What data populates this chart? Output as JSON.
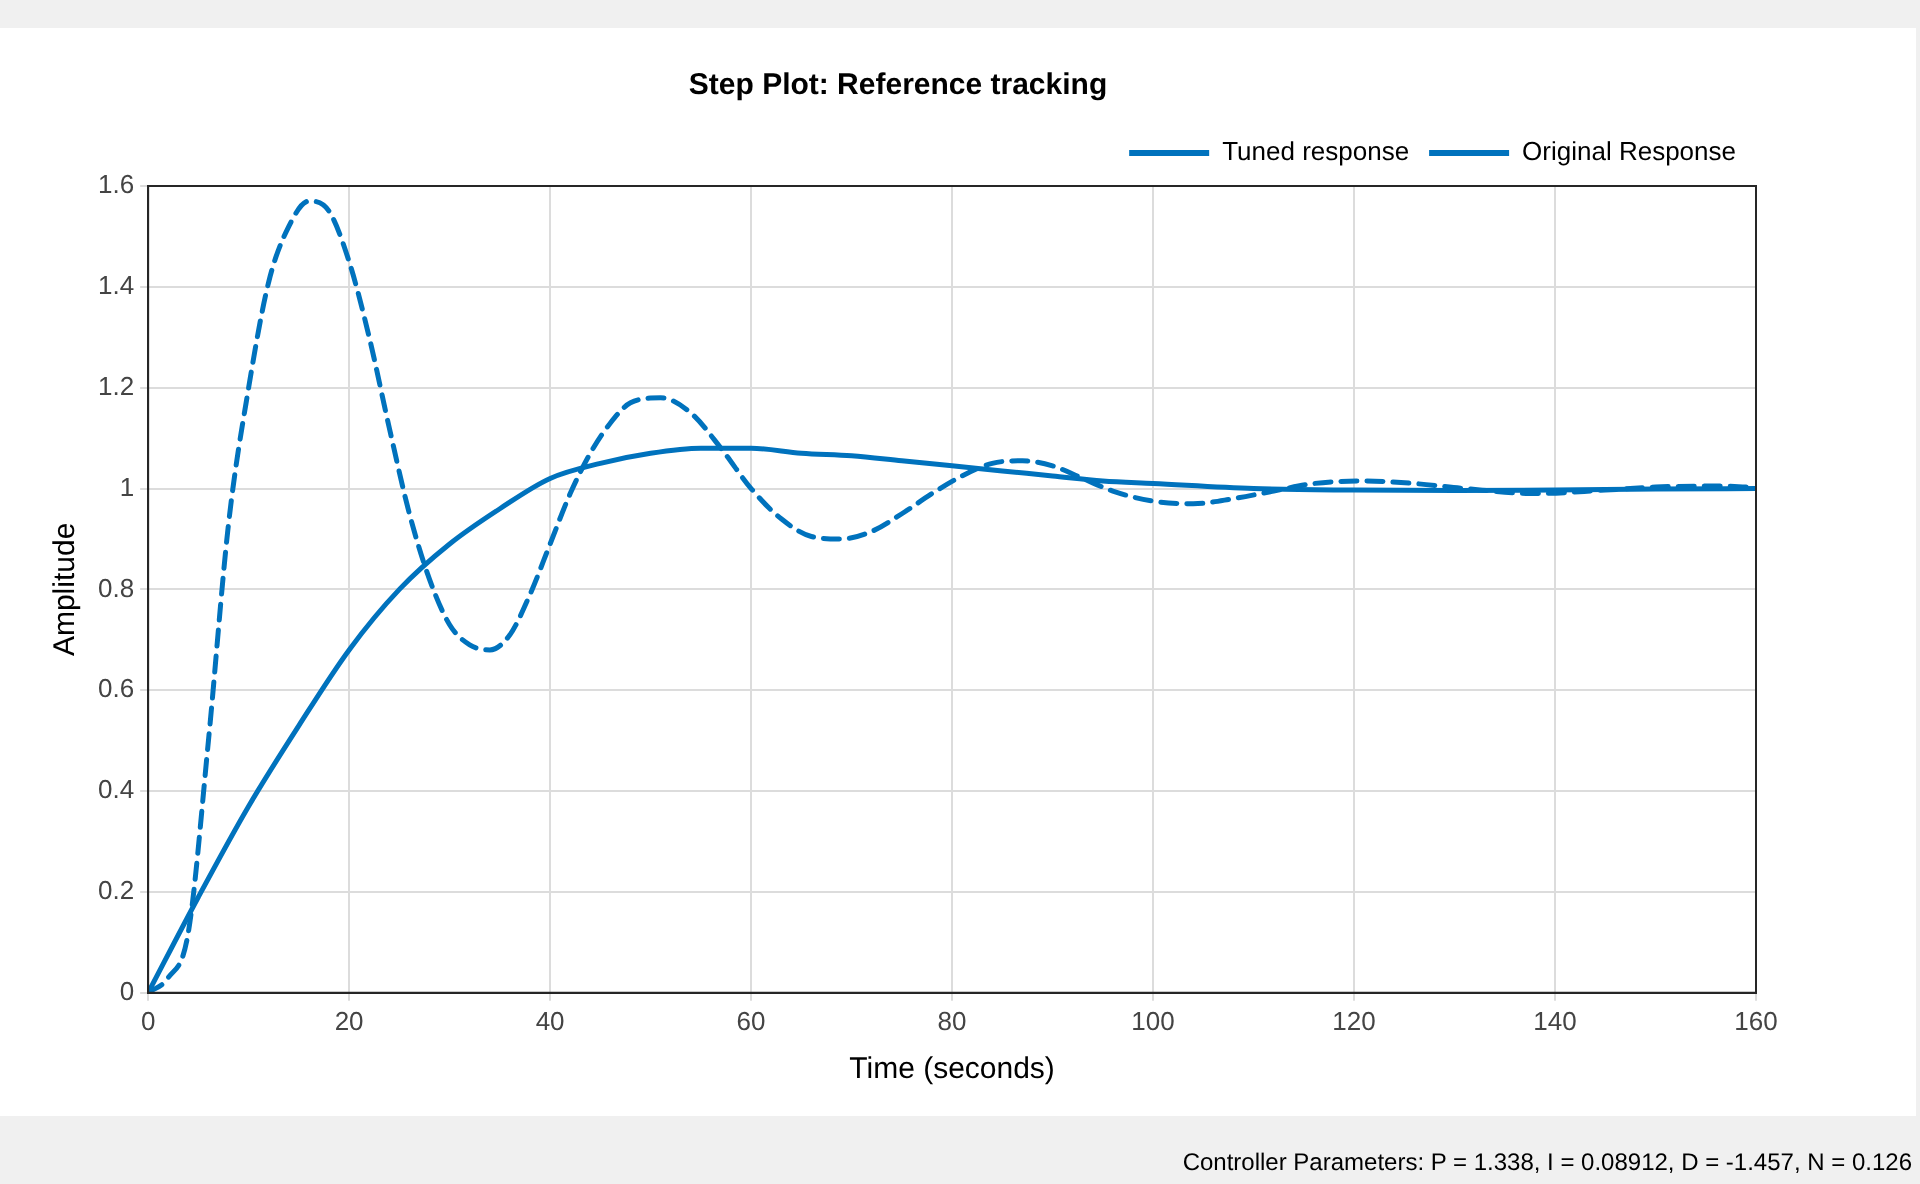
{
  "chart_data": {
    "type": "line",
    "title": "Step Plot: Reference tracking",
    "xlabel": "Time (seconds)",
    "ylabel": "Amplitude",
    "xlim": [
      0,
      160
    ],
    "xticks": [
      0,
      20,
      40,
      60,
      80,
      100,
      120,
      140,
      160
    ],
    "ylim": [
      0,
      1.6
    ],
    "yticks": [
      0,
      0.2,
      0.4,
      0.6,
      0.8,
      1,
      1.2,
      1.4,
      1.6
    ],
    "grid": true,
    "legend": "top right",
    "marker": "none",
    "annotations": [
      "Controller Parameters: P = 1.338, I = 0.08912, D = -1.457, N = 0.126"
    ],
    "series": [
      {
        "name": "Tuned response",
        "color": "#0072bd",
        "line_style": "solid",
        "x": [
          0,
          5,
          10,
          15,
          20,
          25,
          30,
          35,
          40,
          45,
          50,
          55,
          60,
          65,
          70,
          75,
          80,
          85,
          90,
          95,
          100,
          110,
          120,
          130,
          140,
          150,
          160
        ],
        "values": [
          0,
          0.19,
          0.37,
          0.53,
          0.68,
          0.8,
          0.89,
          0.96,
          1.02,
          1.05,
          1.07,
          1.08,
          1.08,
          1.07,
          1.065,
          1.055,
          1.045,
          1.035,
          1.025,
          1.015,
          1.01,
          1,
          0.997,
          0.996,
          0.997,
          0.999,
          1
        ]
      },
      {
        "name": "Original Response",
        "color": "#0072bd",
        "line_style": "dashed",
        "x": [
          0,
          2,
          4,
          6,
          8,
          10,
          12,
          14,
          16,
          18,
          20,
          22,
          24,
          26,
          28,
          30,
          32,
          34,
          36,
          38,
          40,
          42,
          44,
          46,
          48,
          51,
          54,
          57,
          60,
          63,
          66,
          69,
          72,
          75,
          78,
          81,
          84,
          87,
          90,
          93,
          96,
          100,
          104,
          108,
          112,
          116,
          121,
          126,
          131,
          138,
          145,
          150,
          156,
          160
        ],
        "values": [
          0,
          0.03,
          0.12,
          0.5,
          0.93,
          1.2,
          1.41,
          1.52,
          1.57,
          1.55,
          1.45,
          1.3,
          1.12,
          0.95,
          0.82,
          0.73,
          0.69,
          0.68,
          0.71,
          0.79,
          0.89,
          0.99,
          1.07,
          1.13,
          1.17,
          1.18,
          1.15,
          1.08,
          1,
          0.94,
          0.905,
          0.9,
          0.915,
          0.95,
          0.99,
          1.025,
          1.05,
          1.055,
          1.045,
          1.02,
          0.995,
          0.975,
          0.97,
          0.98,
          0.995,
          1.01,
          1.015,
          1.01,
          1,
          0.99,
          0.997,
          1.003,
          1.005,
          1.002
        ]
      }
    ]
  }
}
